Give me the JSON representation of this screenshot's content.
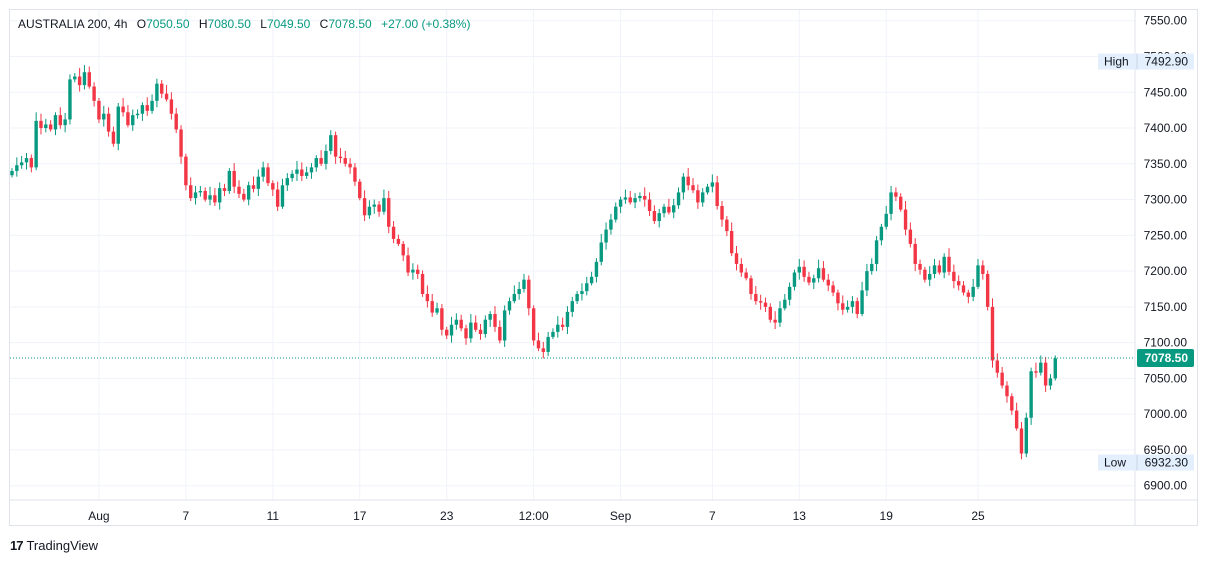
{
  "legend": {
    "symbol": "AUSTRALIA 200",
    "interval": "4h",
    "open_label": "O",
    "open": "7050.50",
    "high_label": "H",
    "high": "7080.50",
    "low_label": "L",
    "low": "7049.50",
    "close_label": "C",
    "close": "7078.50",
    "change": "+27.00 (+0.38%)"
  },
  "footer": {
    "brand": "TradingView"
  },
  "colors": {
    "up": "#089981",
    "down": "#f23645",
    "grid": "#f0f3fa",
    "axis_text": "#131722",
    "badge_bg": "#e3effd"
  },
  "chart_data": {
    "type": "candlestick",
    "y_ticks": [
      "7550.00",
      "7500.00",
      "7450.00",
      "7400.00",
      "7350.00",
      "7300.00",
      "7250.00",
      "7200.00",
      "7150.00",
      "7100.00",
      "7050.00",
      "7000.00",
      "6950.00",
      "6900.00"
    ],
    "ylim": [
      6880,
      7565
    ],
    "x_ticks": [
      "Aug",
      "7",
      "11",
      "17",
      "23",
      "12:00",
      "Sep",
      "7",
      "13",
      "19",
      "25"
    ],
    "x_tick_bar_index": [
      18,
      36,
      54,
      72,
      90,
      108,
      126,
      145,
      163,
      181,
      200
    ],
    "high_marker": {
      "label": "High",
      "value": "7492.90"
    },
    "low_marker": {
      "label": "Low",
      "value": "6932.30"
    },
    "last_price": "7078.50",
    "closes": [
      7340,
      7348,
      7352,
      7358,
      7345,
      7410,
      7400,
      7405,
      7398,
      7418,
      7404,
      7412,
      7468,
      7472,
      7460,
      7478,
      7458,
      7438,
      7412,
      7420,
      7395,
      7378,
      7430,
      7422,
      7404,
      7418,
      7420,
      7432,
      7424,
      7438,
      7462,
      7448,
      7440,
      7420,
      7398,
      7360,
      7320,
      7302,
      7310,
      7312,
      7300,
      7306,
      7296,
      7316,
      7312,
      7340,
      7318,
      7308,
      7300,
      7320,
      7315,
      7332,
      7345,
      7323,
      7314,
      7290,
      7320,
      7330,
      7336,
      7342,
      7333,
      7338,
      7345,
      7358,
      7350,
      7368,
      7390,
      7360,
      7358,
      7350,
      7345,
      7325,
      7302,
      7278,
      7290,
      7293,
      7283,
      7302,
      7262,
      7245,
      7238,
      7222,
      7198,
      7202,
      7196,
      7168,
      7158,
      7142,
      7148,
      7118,
      7110,
      7125,
      7132,
      7120,
      7106,
      7128,
      7118,
      7112,
      7132,
      7140,
      7122,
      7103,
      7145,
      7158,
      7168,
      7175,
      7188,
      7148,
      7103,
      7092,
      7087,
      7108,
      7115,
      7125,
      7122,
      7143,
      7158,
      7168,
      7172,
      7183,
      7192,
      7213,
      7240,
      7258,
      7272,
      7290,
      7300,
      7303,
      7296,
      7302,
      7305,
      7300,
      7284,
      7270,
      7281,
      7290,
      7282,
      7292,
      7310,
      7332,
      7320,
      7313,
      7296,
      7310,
      7318,
      7324,
      7291,
      7272,
      7256,
      7225,
      7210,
      7198,
      7190,
      7168,
      7158,
      7156,
      7150,
      7132,
      7128,
      7148,
      7160,
      7178,
      7198,
      7206,
      7192,
      7184,
      7190,
      7204,
      7188,
      7180,
      7170,
      7155,
      7146,
      7150,
      7158,
      7140,
      7173,
      7200,
      7210,
      7243,
      7262,
      7280,
      7310,
      7304,
      7286,
      7258,
      7238,
      7210,
      7202,
      7188,
      7196,
      7208,
      7198,
      7220,
      7199,
      7186,
      7180,
      7170,
      7164,
      7178,
      7208,
      7196,
      7150,
      7075,
      7058,
      7040,
      7025,
      7005,
      6980,
      6945,
      6995,
      7060,
      7058,
      7072,
      7040,
      7050,
      7078
    ]
  }
}
